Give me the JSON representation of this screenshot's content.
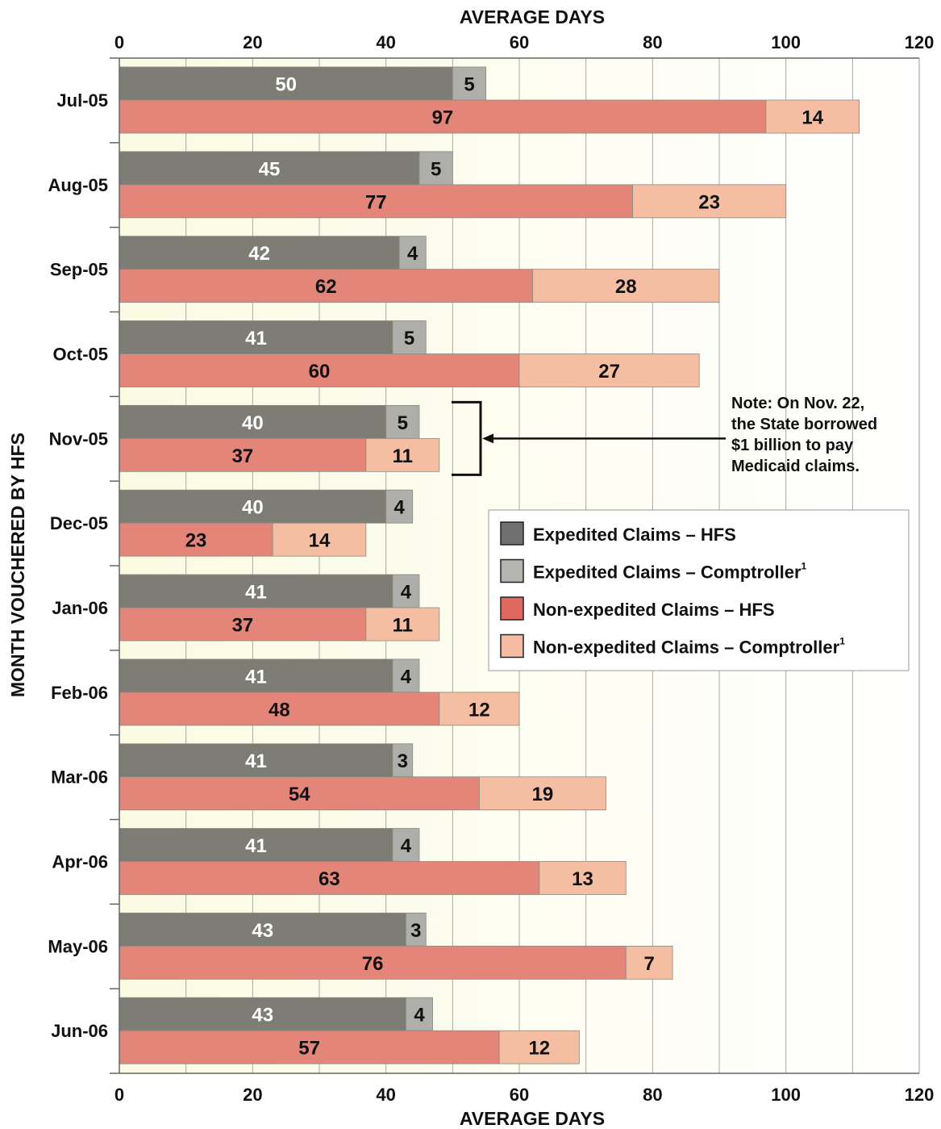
{
  "chart_data": {
    "type": "bar",
    "orientation": "horizontal",
    "stacked": true,
    "xlabel": "AVERAGE DAYS",
    "ylabel": "MONTH VOUCHERED BY HFS",
    "xlim": [
      0,
      120
    ],
    "xticks": [
      "0",
      "20",
      "40",
      "60",
      "80",
      "100",
      "120"
    ],
    "grid": true,
    "categories": [
      "Jul-05",
      "Aug-05",
      "Sep-05",
      "Oct-05",
      "Nov-05",
      "Dec-05",
      "Jan-06",
      "Feb-06",
      "Mar-06",
      "Apr-06",
      "May-06",
      "Jun-06"
    ],
    "groups": [
      {
        "stack": "expedited",
        "series": [
          {
            "name": "Expedited Claims – HFS",
            "color": "#7d7d75",
            "values": [
              50,
              45,
              42,
              41,
              40,
              40,
              41,
              41,
              41,
              41,
              43,
              43
            ]
          },
          {
            "name": "Expedited Claims – Comptroller",
            "color": "#aeaeaa",
            "values": [
              5,
              5,
              4,
              5,
              5,
              4,
              4,
              4,
              3,
              4,
              3,
              4
            ]
          }
        ]
      },
      {
        "stack": "non-expedited",
        "series": [
          {
            "name": "Non-expedited Claims – HFS",
            "color": "#e4857a",
            "values": [
              97,
              77,
              62,
              60,
              37,
              23,
              37,
              48,
              54,
              63,
              76,
              57
            ]
          },
          {
            "name": "Non-expedited Claims – Comptroller",
            "color": "#f5bea3",
            "values": [
              14,
              23,
              28,
              27,
              11,
              14,
              11,
              12,
              19,
              13,
              7,
              12
            ]
          }
        ]
      }
    ],
    "legend": {
      "position": "right",
      "items": [
        {
          "label": "Expedited Claims – HFS",
          "sup": "",
          "color": "#6f6f6f"
        },
        {
          "label": "Expedited Claims – Comptroller",
          "sup": "1",
          "color": "#b4b4b0"
        },
        {
          "label": "Non-expedited Claims – HFS",
          "sup": "",
          "color": "#e0695f"
        },
        {
          "label": "Non-expedited Claims – Comptroller",
          "sup": "1",
          "color": "#f6bca3"
        }
      ]
    },
    "annotation": {
      "category": "Nov-05",
      "lines": [
        "Note: On Nov. 22,",
        "the State borrowed",
        "$1 billion to pay",
        "Medicaid claims."
      ]
    }
  }
}
